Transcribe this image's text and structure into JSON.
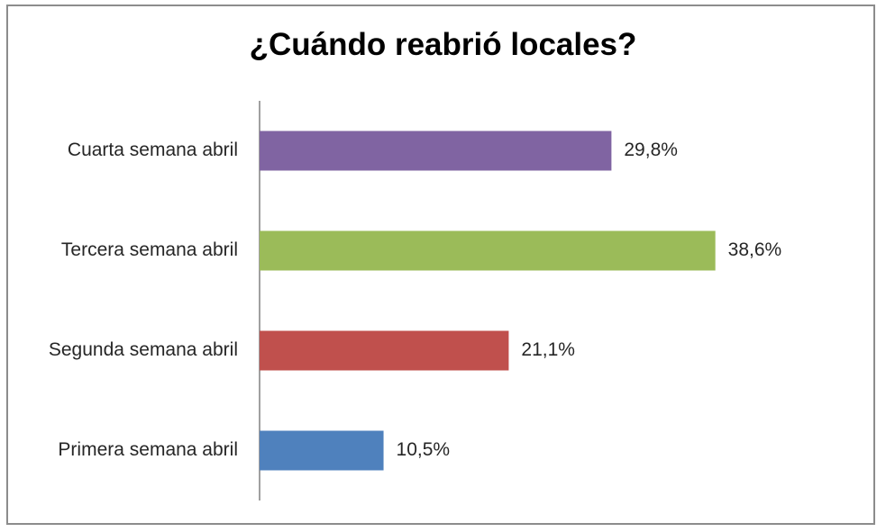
{
  "chart_data": {
    "type": "bar",
    "orientation": "horizontal",
    "title": "¿Cuándo reabrió locales?",
    "categories": [
      "Cuarta semana abril",
      "Tercera semana abril",
      "Segunda semana abril",
      "Primera semana abril"
    ],
    "values": [
      29.8,
      38.6,
      21.1,
      10.5
    ],
    "value_labels": [
      "29,8%",
      "38,6%",
      "21,1%",
      "10,5%"
    ],
    "colors": [
      "#8064a2",
      "#9bbb59",
      "#c0504d",
      "#4f81bd"
    ],
    "unit": "%",
    "grid": false,
    "legend": "none"
  }
}
